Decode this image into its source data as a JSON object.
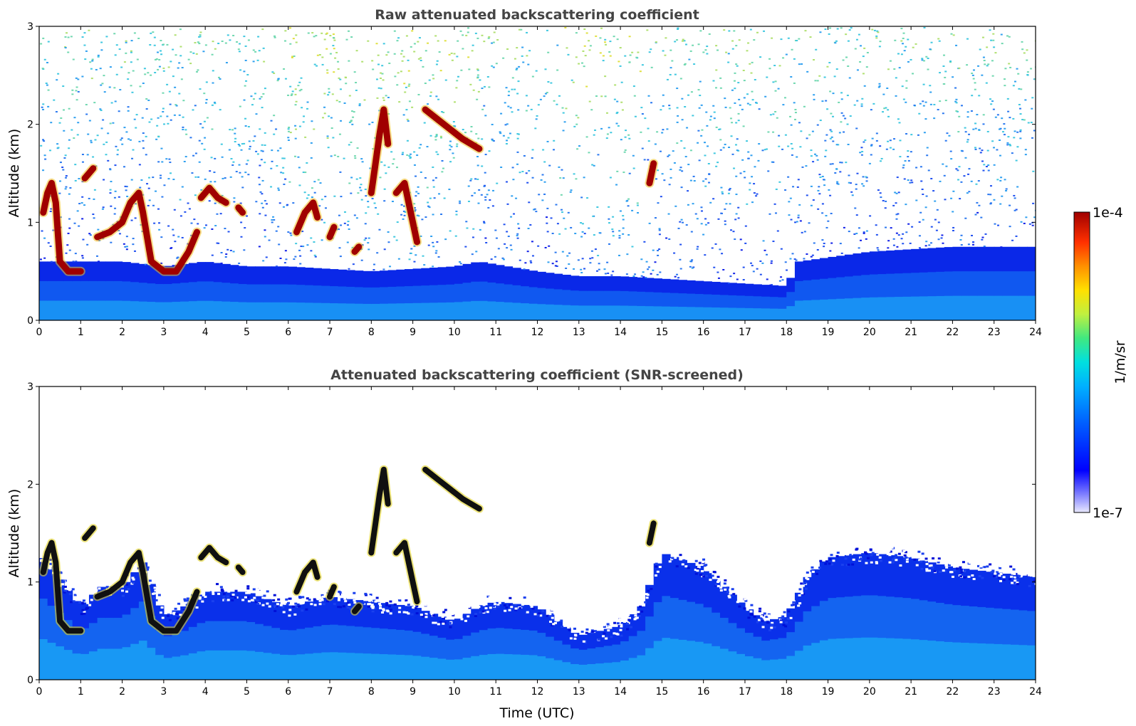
{
  "chart_data": [
    {
      "type": "heatmap",
      "title": "Raw attenuated backscattering coefficient",
      "xlabel": "",
      "ylabel": "Altitude (km)",
      "xlim": [
        0,
        24
      ],
      "ylim": [
        0,
        3
      ],
      "x_ticks": [
        "0",
        "1",
        "2",
        "3",
        "4",
        "5",
        "6",
        "7",
        "8",
        "9",
        "10",
        "11",
        "12",
        "13",
        "14",
        "15",
        "16",
        "17",
        "18",
        "19",
        "20",
        "21",
        "22",
        "23",
        "24"
      ],
      "y_ticks": [
        "0",
        "1",
        "2",
        "3"
      ],
      "grid": false,
      "features": [
        {
          "kind": "boundary_layer_top",
          "points": [
            [
              0,
              0.6
            ],
            [
              1,
              0.6
            ],
            [
              2,
              0.6
            ],
            [
              3,
              0.55
            ],
            [
              4,
              0.6
            ],
            [
              5,
              0.55
            ],
            [
              6,
              0.55
            ],
            [
              8,
              0.5
            ],
            [
              10,
              0.55
            ],
            [
              10.6,
              0.6
            ],
            [
              12,
              0.5
            ],
            [
              13,
              0.45
            ],
            [
              14,
              0.45
            ],
            [
              16,
              0.4
            ],
            [
              18,
              0.35
            ],
            [
              18.3,
              0.6
            ],
            [
              20,
              0.7
            ],
            [
              22,
              0.75
            ],
            [
              24,
              0.75
            ]
          ]
        },
        {
          "kind": "cloud",
          "points": [
            [
              0.1,
              1.1
            ],
            [
              0.2,
              1.3
            ],
            [
              0.3,
              1.4
            ],
            [
              0.4,
              1.2
            ],
            [
              0.5,
              0.6
            ],
            [
              0.7,
              0.5
            ],
            [
              1.0,
              0.5
            ]
          ]
        },
        {
          "kind": "cloud",
          "points": [
            [
              1.1,
              1.45
            ],
            [
              1.3,
              1.55
            ]
          ]
        },
        {
          "kind": "cloud",
          "points": [
            [
              1.4,
              0.85
            ],
            [
              1.7,
              0.9
            ],
            [
              2.0,
              1.0
            ],
            [
              2.2,
              1.2
            ],
            [
              2.4,
              1.3
            ],
            [
              2.5,
              1.1
            ],
            [
              2.7,
              0.6
            ],
            [
              3.0,
              0.5
            ],
            [
              3.3,
              0.5
            ],
            [
              3.6,
              0.7
            ],
            [
              3.8,
              0.9
            ]
          ]
        },
        {
          "kind": "cloud",
          "points": [
            [
              3.9,
              1.25
            ],
            [
              4.1,
              1.35
            ],
            [
              4.3,
              1.25
            ],
            [
              4.5,
              1.2
            ]
          ]
        },
        {
          "kind": "cloud",
          "points": [
            [
              4.8,
              1.15
            ],
            [
              4.9,
              1.1
            ]
          ]
        },
        {
          "kind": "cloud",
          "points": [
            [
              6.2,
              0.9
            ],
            [
              6.4,
              1.1
            ],
            [
              6.6,
              1.2
            ],
            [
              6.7,
              1.05
            ]
          ]
        },
        {
          "kind": "cloud",
          "points": [
            [
              7.0,
              0.85
            ],
            [
              7.1,
              0.95
            ]
          ]
        },
        {
          "kind": "cloud",
          "points": [
            [
              7.6,
              0.7
            ],
            [
              7.7,
              0.75
            ]
          ]
        },
        {
          "kind": "cloud",
          "points": [
            [
              8.0,
              1.3
            ],
            [
              8.1,
              1.6
            ],
            [
              8.2,
              1.9
            ],
            [
              8.3,
              2.15
            ],
            [
              8.4,
              1.8
            ]
          ]
        },
        {
          "kind": "cloud",
          "points": [
            [
              8.6,
              1.3
            ],
            [
              8.8,
              1.4
            ],
            [
              9.0,
              1.0
            ],
            [
              9.1,
              0.8
            ]
          ]
        },
        {
          "kind": "cloud",
          "points": [
            [
              9.3,
              2.15
            ],
            [
              9.6,
              2.05
            ],
            [
              9.9,
              1.95
            ],
            [
              10.2,
              1.85
            ],
            [
              10.6,
              1.75
            ]
          ]
        },
        {
          "kind": "cloud",
          "points": [
            [
              14.7,
              1.4
            ],
            [
              14.8,
              1.6
            ]
          ]
        }
      ]
    },
    {
      "type": "heatmap",
      "title": "Attenuated backscattering coefficient (SNR-screened)",
      "xlabel": "Time (UTC)",
      "ylabel": "Altitude (km)",
      "xlim": [
        0,
        24
      ],
      "ylim": [
        0,
        3
      ],
      "x_ticks": [
        "0",
        "1",
        "2",
        "3",
        "4",
        "5",
        "6",
        "7",
        "8",
        "9",
        "10",
        "11",
        "12",
        "13",
        "14",
        "15",
        "16",
        "17",
        "18",
        "19",
        "20",
        "21",
        "22",
        "23",
        "24"
      ],
      "y_ticks": [
        "0",
        "1",
        "2",
        "3"
      ],
      "grid": false,
      "masked_top": [
        [
          0,
          1.3
        ],
        [
          1,
          0.75
        ],
        [
          1.5,
          0.95
        ],
        [
          2,
          0.95
        ],
        [
          2.5,
          1.2
        ],
        [
          3,
          0.65
        ],
        [
          3.5,
          0.75
        ],
        [
          4,
          0.9
        ],
        [
          5,
          0.9
        ],
        [
          6,
          0.75
        ],
        [
          7,
          0.85
        ],
        [
          8,
          0.8
        ],
        [
          9,
          0.75
        ],
        [
          10,
          0.6
        ],
        [
          10.6,
          0.75
        ],
        [
          11,
          0.8
        ],
        [
          12,
          0.75
        ],
        [
          13,
          0.45
        ],
        [
          14,
          0.55
        ],
        [
          14.5,
          0.75
        ],
        [
          15,
          1.3
        ],
        [
          16,
          1.15
        ],
        [
          17,
          0.75
        ],
        [
          17.5,
          0.6
        ],
        [
          18,
          0.65
        ],
        [
          18.5,
          1.05
        ],
        [
          19,
          1.25
        ],
        [
          20,
          1.3
        ],
        [
          21,
          1.25
        ],
        [
          22,
          1.15
        ],
        [
          23,
          1.1
        ],
        [
          24,
          1.05
        ]
      ]
    }
  ],
  "colorbar": {
    "label": "1/m/sr",
    "max_label": "1e-4",
    "min_label": "1e-7",
    "scale": "log",
    "range": [
      1e-07,
      0.0001
    ],
    "colors": [
      "#e8e8ff",
      "#8080ff",
      "#0000ff",
      "#0060ff",
      "#00b0ff",
      "#00e0e0",
      "#40e880",
      "#c0f040",
      "#ffe000",
      "#ff9000",
      "#ff3000",
      "#a00000"
    ]
  }
}
